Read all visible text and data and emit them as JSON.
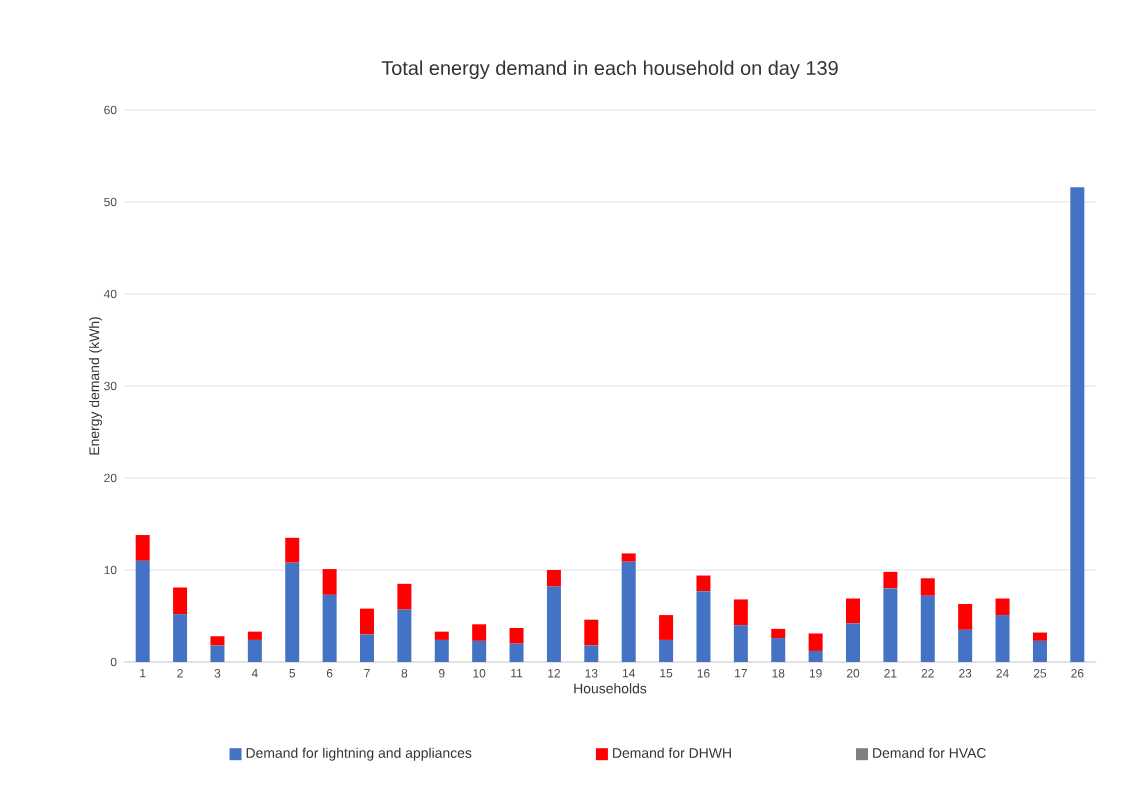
{
  "chart_data": {
    "type": "bar",
    "title": "Total energy demand in each household on day 139",
    "xlabel": "Households",
    "ylabel": "Energy demand (kWh)",
    "categories": [
      "1",
      "2",
      "3",
      "4",
      "5",
      "6",
      "7",
      "8",
      "9",
      "10",
      "11",
      "12",
      "13",
      "14",
      "15",
      "16",
      "17",
      "18",
      "19",
      "20",
      "21",
      "22",
      "23",
      "24",
      "25",
      "26"
    ],
    "stacked": true,
    "ylim": [
      0,
      60
    ],
    "yticks": [
      0,
      10,
      20,
      30,
      40,
      50,
      60
    ],
    "grid": "y",
    "legend": "bottom",
    "series": [
      {
        "name": "Demand for lightning and appliances",
        "color": "#4472c4",
        "values": [
          11.0,
          5.2,
          1.8,
          2.4,
          10.8,
          7.3,
          3.0,
          5.7,
          2.4,
          2.3,
          2.0,
          8.2,
          1.8,
          10.9,
          2.4,
          7.7,
          4.0,
          2.6,
          1.2,
          4.2,
          8.0,
          7.2,
          3.5,
          5.1,
          2.3,
          51.6
        ]
      },
      {
        "name": "Demand for DHWH",
        "color": "#ff0000",
        "values": [
          2.8,
          2.9,
          1.0,
          0.9,
          2.7,
          2.8,
          2.8,
          2.8,
          0.9,
          1.8,
          1.7,
          1.8,
          2.8,
          0.9,
          2.7,
          1.7,
          2.8,
          1.0,
          1.9,
          2.7,
          1.8,
          1.9,
          2.8,
          1.8,
          0.9,
          0
        ]
      },
      {
        "name": "Demand for HVAC",
        "color": "#808080",
        "values": [
          0,
          0,
          0,
          0,
          0,
          0,
          0,
          0,
          0,
          0,
          0,
          0,
          0,
          0,
          0,
          0,
          0,
          0,
          0,
          0,
          0,
          0,
          0,
          0,
          0,
          0
        ]
      }
    ]
  }
}
